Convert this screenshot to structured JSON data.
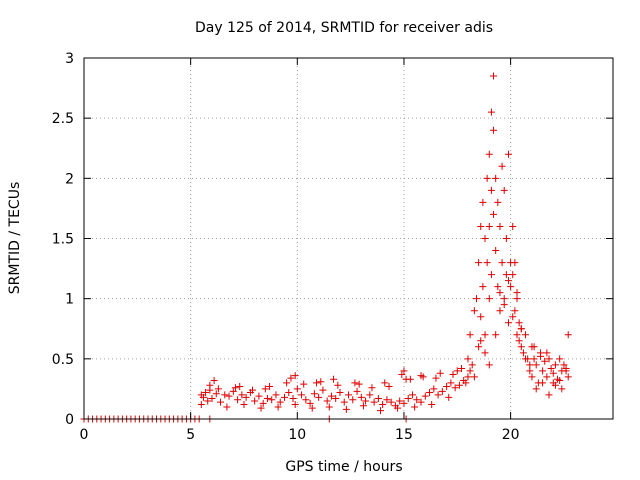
{
  "chart_data": {
    "type": "scatter",
    "title": "Day 125 of 2014, SRMTID for receiver adis",
    "xlabel": "GPS time / hours",
    "ylabel": "SRMTID / TECUs",
    "xlim": [
      0,
      24.8
    ],
    "ylim": [
      0,
      3
    ],
    "xticks": [
      0,
      5,
      10,
      15,
      20
    ],
    "xtick_labels": [
      "0",
      "5",
      "10",
      "15",
      "20"
    ],
    "yticks": [
      0,
      0.5,
      1,
      1.5,
      2,
      2.5,
      3
    ],
    "ytick_labels": [
      "0",
      "0.5",
      "1",
      "1.5",
      "2",
      "2.5",
      "3"
    ],
    "grid": true,
    "marker": "+",
    "color": "#e00000",
    "series": [
      {
        "name": "SRMTID",
        "x": [
          0.0,
          0.2,
          0.4,
          0.6,
          0.8,
          1.0,
          1.2,
          1.4,
          1.6,
          1.8,
          2.0,
          2.2,
          2.4,
          2.6,
          2.8,
          3.0,
          3.2,
          3.4,
          3.6,
          3.8,
          4.0,
          4.2,
          4.4,
          4.6,
          4.8,
          5.0,
          5.2,
          5.4,
          5.9,
          11.5,
          15.1,
          5.5,
          5.6,
          5.7,
          5.8,
          5.9,
          6.0,
          6.2,
          6.4,
          6.6,
          6.8,
          7.0,
          7.2,
          7.4,
          7.6,
          7.8,
          8.0,
          8.2,
          8.4,
          8.6,
          8.8,
          9.0,
          9.2,
          9.4,
          9.6,
          9.8,
          10.0,
          10.2,
          10.4,
          10.6,
          10.8,
          11.0,
          11.2,
          11.4,
          11.6,
          11.8,
          12.0,
          12.2,
          12.4,
          12.6,
          12.8,
          13.0,
          13.2,
          13.4,
          13.6,
          13.8,
          14.0,
          14.2,
          14.4,
          14.6,
          14.8,
          15.0,
          15.2,
          15.4,
          15.6,
          15.8,
          16.0,
          16.2,
          16.4,
          16.6,
          16.8,
          17.0,
          17.2,
          17.4,
          17.6,
          17.8,
          18.0,
          5.5,
          5.9,
          6.3,
          6.7,
          7.1,
          7.5,
          7.9,
          8.3,
          8.7,
          9.1,
          9.5,
          9.9,
          10.3,
          10.7,
          11.1,
          11.5,
          11.9,
          12.3,
          12.7,
          13.1,
          13.5,
          13.9,
          14.3,
          14.7,
          15.1,
          15.5,
          15.9,
          16.3,
          16.7,
          17.1,
          17.5,
          6.1,
          7.3,
          8.5,
          9.7,
          9.9,
          10.9,
          11.7,
          12.9,
          14.1,
          14.9,
          15.0,
          15.3,
          15.8,
          16.5,
          17.3,
          17.7,
          17.9,
          18.0,
          18.1,
          18.2,
          18.3,
          18.4,
          18.5,
          18.5,
          18.6,
          18.6,
          18.7,
          18.7,
          18.8,
          18.8,
          18.9,
          18.9,
          19.0,
          19.0,
          19.0,
          19.1,
          19.1,
          19.1,
          19.2,
          19.2,
          19.2,
          19.3,
          19.3,
          19.4,
          19.4,
          19.5,
          19.5,
          19.6,
          19.6,
          19.7,
          19.7,
          19.8,
          19.8,
          19.9,
          19.9,
          20.0,
          20.0,
          20.1,
          20.1,
          20.2,
          20.2,
          20.3,
          20.3,
          20.4,
          20.4,
          20.5,
          20.5,
          20.6,
          20.7,
          20.8,
          20.9,
          21.0,
          18.1,
          18.3,
          18.6,
          18.8,
          19.0,
          19.3,
          19.5,
          19.7,
          19.9,
          20.1,
          20.3,
          20.5,
          20.7,
          20.9,
          21.0,
          21.1,
          21.2,
          21.3,
          21.4,
          21.5,
          21.6,
          21.7,
          21.8,
          21.9,
          22.0,
          22.1,
          22.2,
          22.3,
          22.4,
          22.5,
          22.6,
          22.7,
          21.2,
          21.5,
          21.8,
          22.1,
          22.4,
          22.7,
          21.1,
          21.4,
          21.7,
          22.0,
          22.3,
          22.6
        ],
        "y": [
          0,
          0,
          0,
          0,
          0,
          0,
          0,
          0,
          0,
          0,
          0,
          0,
          0,
          0,
          0,
          0,
          0,
          0,
          0,
          0,
          0,
          0,
          0,
          0,
          0,
          0,
          0,
          0,
          0,
          0,
          0,
          0.2,
          0.18,
          0.22,
          0.15,
          0.24,
          0.17,
          0.21,
          0.14,
          0.2,
          0.19,
          0.23,
          0.16,
          0.2,
          0.18,
          0.22,
          0.15,
          0.19,
          0.13,
          0.17,
          0.16,
          0.2,
          0.14,
          0.18,
          0.22,
          0.17,
          0.25,
          0.2,
          0.16,
          0.13,
          0.21,
          0.18,
          0.24,
          0.15,
          0.19,
          0.17,
          0.22,
          0.14,
          0.2,
          0.16,
          0.23,
          0.18,
          0.15,
          0.2,
          0.14,
          0.17,
          0.12,
          0.16,
          0.14,
          0.11,
          0.15,
          0.13,
          0.17,
          0.2,
          0.16,
          0.14,
          0.19,
          0.22,
          0.25,
          0.2,
          0.23,
          0.27,
          0.3,
          0.26,
          0.28,
          0.32,
          0.35,
          0.12,
          0.28,
          0.25,
          0.1,
          0.26,
          0.12,
          0.24,
          0.09,
          0.27,
          0.1,
          0.3,
          0.12,
          0.29,
          0.09,
          0.31,
          0.1,
          0.28,
          0.08,
          0.3,
          0.11,
          0.26,
          0.07,
          0.27,
          0.09,
          0.33,
          0.1,
          0.35,
          0.12,
          0.38,
          0.18,
          0.4,
          0.32,
          0.27,
          0.25,
          0.34,
          0.36,
          0.3,
          0.33,
          0.29,
          0.3,
          0.37,
          0.4,
          0.33,
          0.36,
          0.34,
          0.37,
          0.42,
          0.3,
          0.5,
          0.7,
          0.45,
          0.9,
          1.0,
          1.3,
          0.6,
          1.6,
          0.85,
          1.8,
          1.1,
          1.5,
          0.7,
          2.0,
          1.3,
          2.2,
          1.6,
          1.0,
          2.55,
          1.9,
          1.2,
          2.85,
          2.4,
          1.7,
          2.0,
          1.4,
          1.1,
          1.8,
          1.6,
          0.9,
          2.1,
          1.3,
          1.9,
          1.0,
          1.5,
          1.2,
          2.2,
          0.8,
          1.3,
          1.1,
          1.6,
          1.2,
          1.3,
          0.9,
          1.0,
          0.7,
          0.8,
          0.65,
          0.6,
          0.75,
          0.55,
          0.7,
          0.5,
          0.45,
          0.6,
          0.4,
          0.35,
          0.65,
          0.55,
          0.45,
          0.7,
          1.05,
          0.95,
          1.15,
          0.85,
          1.05,
          0.75,
          0.5,
          0.4,
          0.35,
          0.5,
          0.45,
          0.3,
          0.55,
          0.4,
          0.48,
          0.35,
          0.5,
          0.42,
          0.38,
          0.45,
          0.33,
          0.5,
          0.4,
          0.45,
          0.42,
          0.7,
          0.25,
          0.3,
          0.2,
          0.28,
          0.25,
          0.35,
          0.6,
          0.52,
          0.55,
          0.3,
          0.32,
          0.4
        ]
      }
    ]
  }
}
